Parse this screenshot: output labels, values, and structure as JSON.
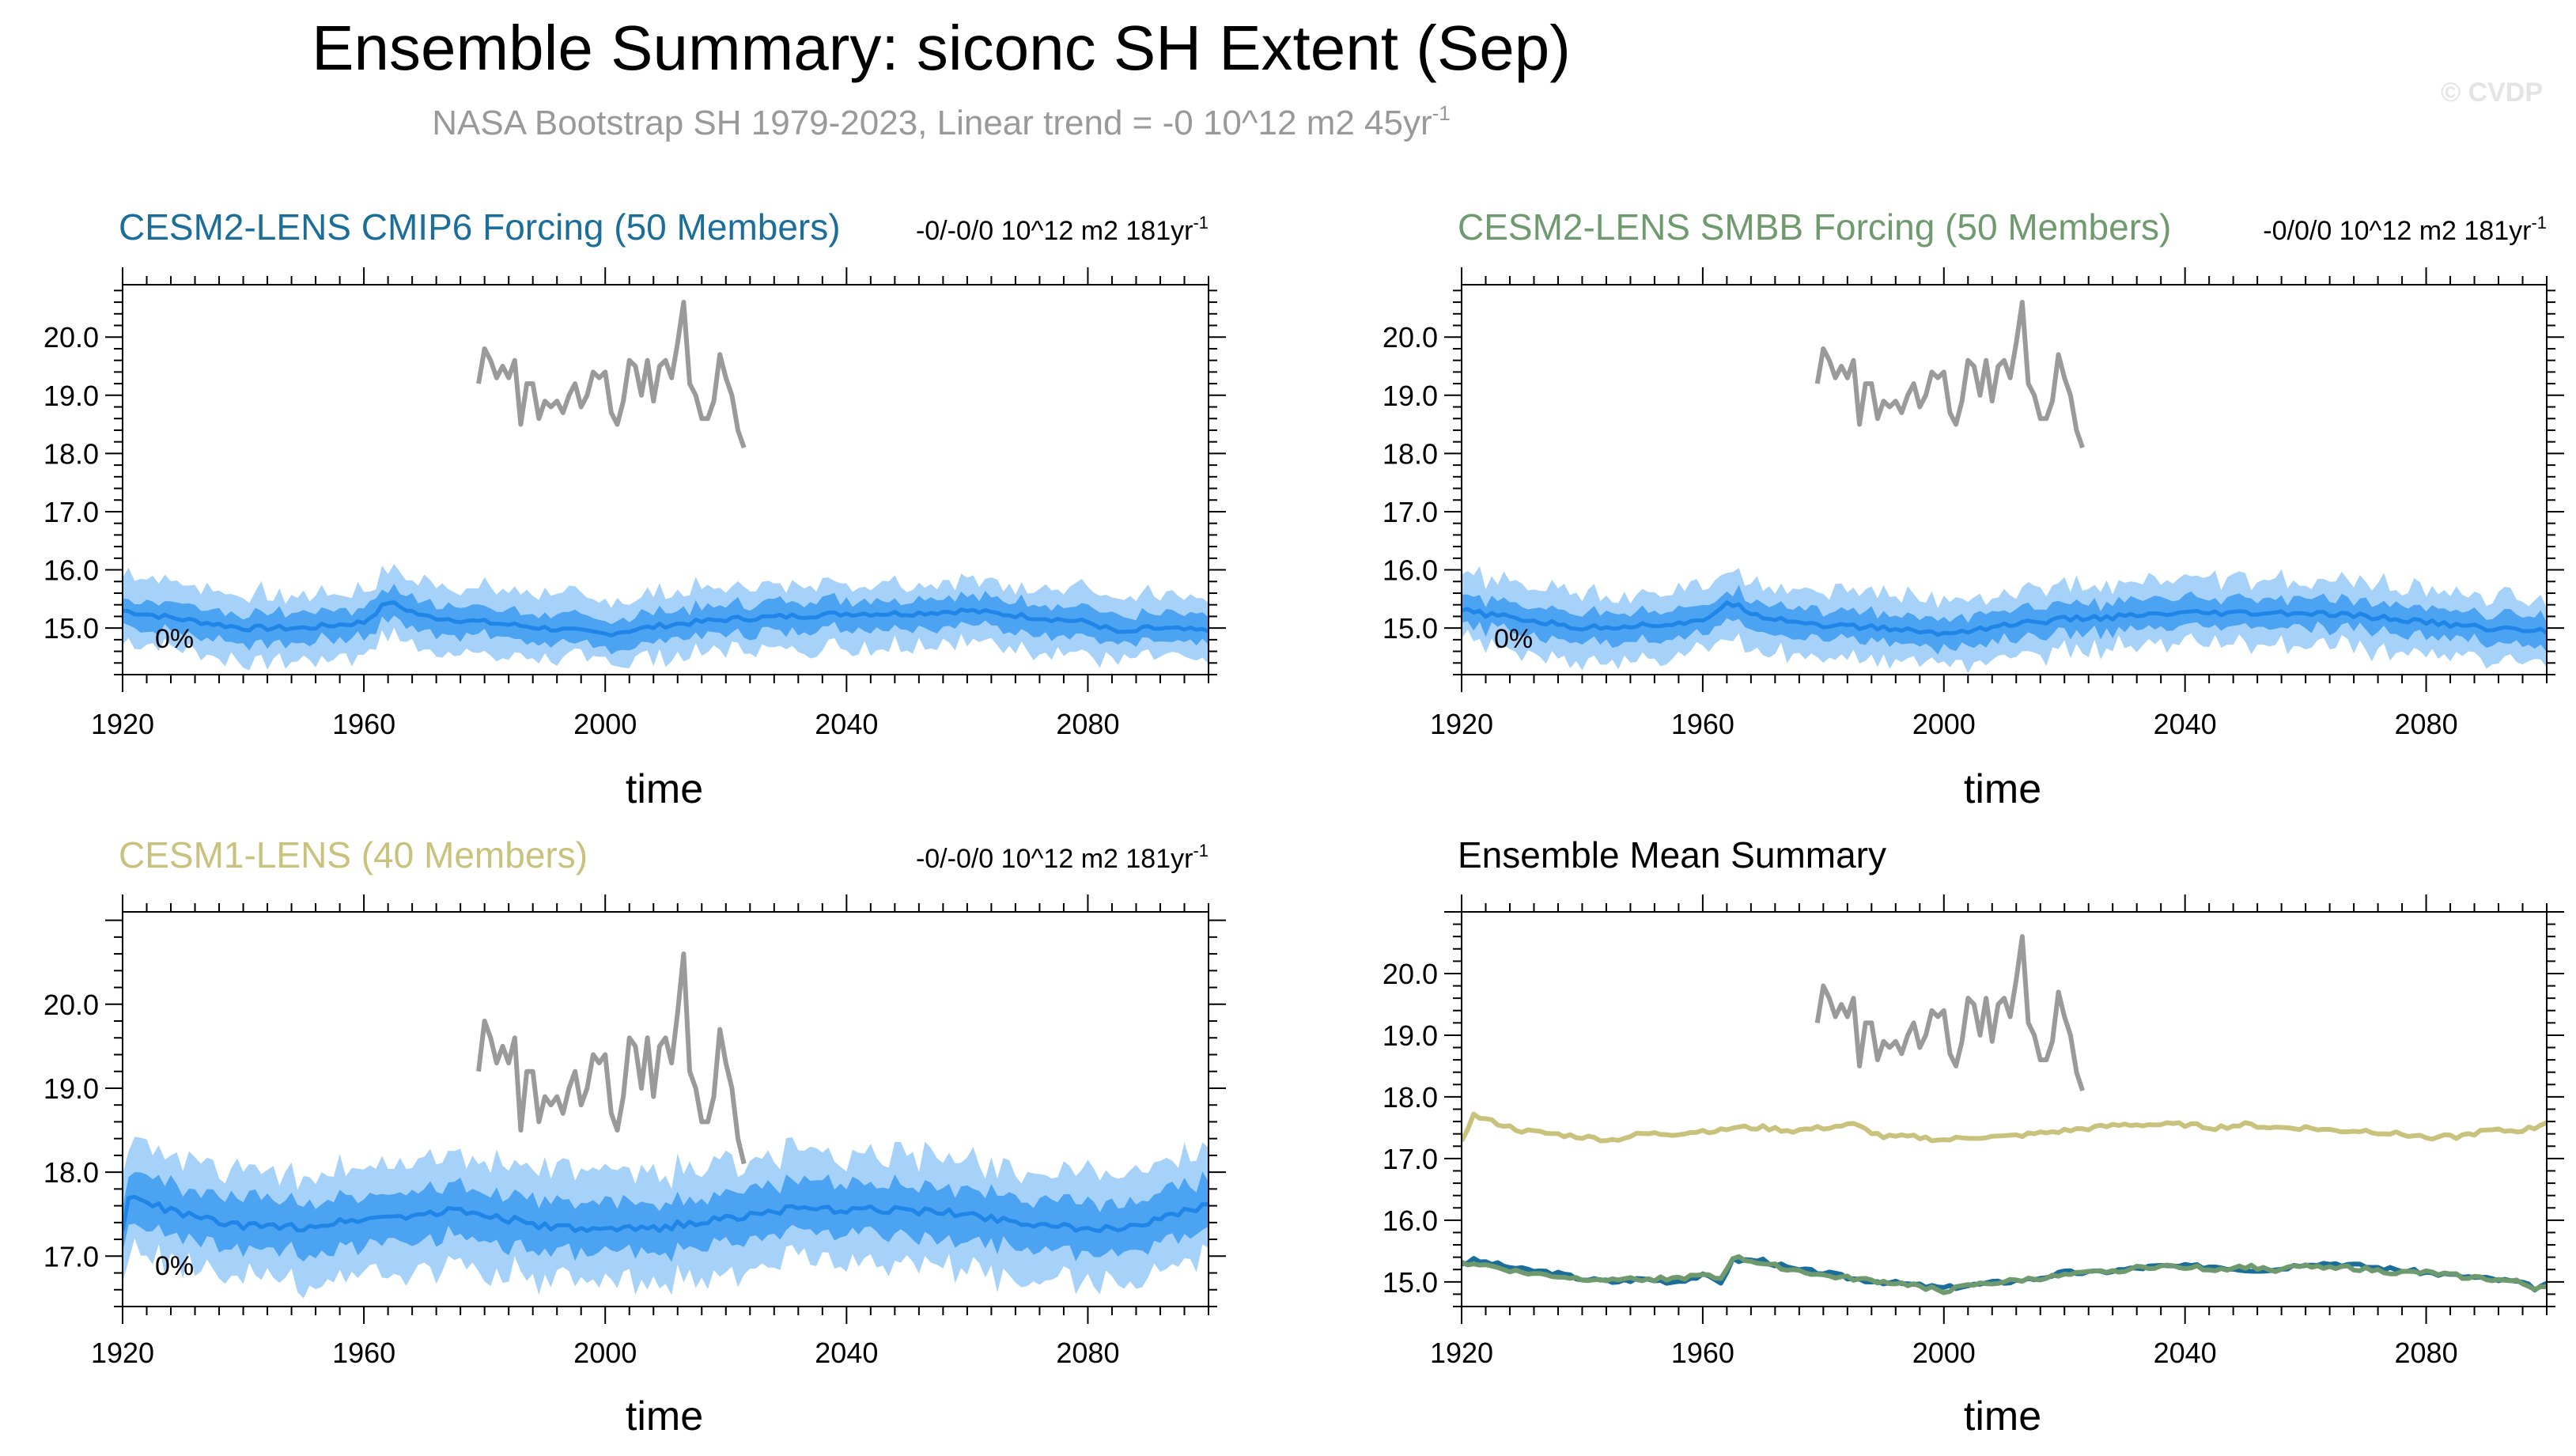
{
  "title": "Ensemble Summary: siconc SH Extent (Sep)",
  "subtitle_main": "NASA Bootstrap SH 1979-2023, Linear trend = -0 10^12 m2 45yr",
  "subtitle_sup": "-1",
  "watermark": "© CVDP",
  "colors": {
    "cmip6": "#1a6e99",
    "smbb": "#6e9a6e",
    "cesm1": "#c8c27c",
    "obs": "#9a9a9a",
    "band_outer": "#a6d2fa",
    "band_inner": "#4ba3f2",
    "mean_line": "#1f86e8"
  },
  "obs": {
    "years": [
      1979,
      1980,
      1981,
      1982,
      1983,
      1984,
      1985,
      1986,
      1987,
      1988,
      1989,
      1990,
      1991,
      1992,
      1993,
      1994,
      1995,
      1996,
      1997,
      1998,
      1999,
      2000,
      2001,
      2002,
      2003,
      2004,
      2005,
      2006,
      2007,
      2008,
      2009,
      2010,
      2011,
      2012,
      2013,
      2014,
      2015,
      2016,
      2017,
      2018,
      2019,
      2020,
      2021,
      2022,
      2023
    ],
    "values": [
      19.2,
      19.8,
      19.6,
      19.3,
      19.5,
      19.3,
      19.6,
      18.5,
      19.2,
      19.2,
      18.6,
      18.9,
      18.8,
      18.9,
      18.7,
      19.0,
      19.2,
      18.8,
      19.0,
      19.4,
      19.3,
      19.4,
      18.7,
      18.5,
      18.9,
      19.6,
      19.5,
      19.0,
      19.6,
      18.9,
      19.5,
      19.6,
      19.3,
      19.9,
      20.6,
      19.2,
      19.0,
      18.6,
      18.6,
      18.9,
      19.7,
      19.3,
      19.0,
      18.4,
      18.1
    ]
  },
  "panels": [
    {
      "id": "cmip6",
      "title": "CESM2-LENS CMIP6 Forcing (50 Members)",
      "trend_main": "-0/-0/0 10^12 m2 181yr",
      "trend_sup": "-1",
      "xlabel": "time",
      "pct_label": "0%",
      "ylim": [
        14.2,
        20.9
      ],
      "yticks": [
        "15.0",
        "16.0",
        "17.0",
        "18.0",
        "19.0",
        "20.0"
      ],
      "xticks": [
        "1920",
        "1960",
        "2000",
        "2040",
        "2080"
      ]
    },
    {
      "id": "smbb",
      "title": "CESM2-LENS SMBB Forcing (50 Members)",
      "trend_main": "-0/0/0 10^12 m2 181yr",
      "trend_sup": "-1",
      "xlabel": "time",
      "pct_label": "0%",
      "ylim": [
        14.2,
        20.9
      ],
      "yticks": [
        "15.0",
        "16.0",
        "17.0",
        "18.0",
        "19.0",
        "20.0"
      ],
      "xticks": [
        "1920",
        "1960",
        "2000",
        "2040",
        "2080"
      ]
    },
    {
      "id": "cesm1",
      "title": "CESM1-LENS (40 Members)",
      "trend_main": "-0/-0/0 10^12 m2 181yr",
      "trend_sup": "-1",
      "xlabel": "time",
      "pct_label": "0%",
      "ylim": [
        16.4,
        21.1
      ],
      "yticks": [
        "17.0",
        "18.0",
        "19.0",
        "20.0"
      ],
      "xticks": [
        "1920",
        "1960",
        "2000",
        "2040",
        "2080"
      ]
    },
    {
      "id": "summary",
      "title": "Ensemble Mean Summary",
      "trend_main": "",
      "trend_sup": "",
      "xlabel": "time",
      "pct_label": "",
      "ylim": [
        14.6,
        21.0
      ],
      "yticks": [
        "15.0",
        "16.0",
        "17.0",
        "18.0",
        "19.0",
        "20.0"
      ],
      "xticks": [
        "1920",
        "1960",
        "2000",
        "2040",
        "2080"
      ]
    }
  ],
  "chart_data": [
    {
      "type": "area",
      "title": "CESM2-LENS CMIP6 Forcing (50 Members)",
      "xlabel": "time",
      "ylabel": "",
      "xlim": [
        1920,
        2100
      ],
      "ylim": [
        14.2,
        20.9
      ],
      "series_description": "ensemble mean with 10-90% (dark) and min-max (light) spread",
      "x": [
        1920,
        1930,
        1940,
        1950,
        1960,
        1964,
        1970,
        1980,
        1990,
        2000,
        2010,
        2020,
        2030,
        2040,
        2050,
        2060,
        2070,
        2080,
        2086,
        2090,
        2100
      ],
      "mean": [
        15.3,
        15.15,
        15.0,
        15.0,
        15.1,
        15.45,
        15.2,
        15.1,
        15.0,
        14.9,
        15.05,
        15.15,
        15.2,
        15.25,
        15.25,
        15.3,
        15.2,
        15.1,
        14.9,
        15.0,
        14.95
      ],
      "p10": [
        15.05,
        14.9,
        14.75,
        14.75,
        14.85,
        15.2,
        14.95,
        14.85,
        14.75,
        14.65,
        14.8,
        14.9,
        14.95,
        15.0,
        15.0,
        15.05,
        14.95,
        14.85,
        14.65,
        14.75,
        14.7
      ],
      "p90": [
        15.55,
        15.4,
        15.25,
        15.25,
        15.35,
        15.7,
        15.45,
        15.35,
        15.25,
        15.15,
        15.3,
        15.4,
        15.45,
        15.5,
        15.5,
        15.55,
        15.45,
        15.35,
        15.15,
        15.25,
        15.2
      ],
      "min": [
        14.75,
        14.6,
        14.45,
        14.45,
        14.55,
        14.9,
        14.65,
        14.55,
        14.45,
        14.4,
        14.5,
        14.6,
        14.65,
        14.7,
        14.7,
        14.75,
        14.65,
        14.55,
        14.4,
        14.45,
        14.4
      ],
      "max": [
        15.95,
        15.75,
        15.6,
        15.55,
        15.65,
        16.05,
        15.8,
        15.7,
        15.6,
        15.45,
        15.6,
        15.7,
        15.75,
        15.8,
        15.8,
        15.85,
        15.75,
        15.65,
        15.45,
        15.55,
        15.5
      ]
    },
    {
      "type": "area",
      "title": "CESM2-LENS SMBB Forcing (50 Members)",
      "xlabel": "time",
      "ylabel": "",
      "xlim": [
        1920,
        2100
      ],
      "ylim": [
        14.2,
        20.9
      ],
      "series_description": "ensemble mean with 10-90% (dark) and min-max (light) spread",
      "x": [
        1920,
        1930,
        1940,
        1950,
        1960,
        1964,
        1970,
        1980,
        1990,
        2000,
        2010,
        2020,
        2030,
        2040,
        2050,
        2060,
        2070,
        2080,
        2090,
        2100
      ],
      "mean": [
        15.3,
        15.15,
        15.0,
        15.05,
        15.1,
        15.45,
        15.2,
        15.05,
        15.0,
        14.9,
        15.05,
        15.15,
        15.2,
        15.25,
        15.25,
        15.25,
        15.2,
        15.1,
        15.0,
        14.95
      ],
      "p10": [
        15.05,
        14.9,
        14.75,
        14.8,
        14.85,
        15.2,
        14.95,
        14.8,
        14.75,
        14.65,
        14.8,
        14.9,
        14.95,
        15.0,
        15.0,
        15.0,
        14.95,
        14.85,
        14.75,
        14.7
      ],
      "p90": [
        15.55,
        15.4,
        15.25,
        15.3,
        15.35,
        15.7,
        15.45,
        15.3,
        15.25,
        15.15,
        15.3,
        15.4,
        15.45,
        15.5,
        15.5,
        15.5,
        15.45,
        15.35,
        15.25,
        15.2
      ],
      "min": [
        14.75,
        14.6,
        14.45,
        14.5,
        14.55,
        14.9,
        14.65,
        14.5,
        14.45,
        14.4,
        14.5,
        14.6,
        14.65,
        14.7,
        14.7,
        14.7,
        14.65,
        14.55,
        14.45,
        14.4
      ],
      "max": [
        15.95,
        15.75,
        15.6,
        15.6,
        15.65,
        16.05,
        15.8,
        15.65,
        15.6,
        15.45,
        15.6,
        15.7,
        15.75,
        15.8,
        15.8,
        15.8,
        15.75,
        15.65,
        15.55,
        15.5
      ]
    },
    {
      "type": "area",
      "title": "CESM1-LENS (40 Members)",
      "xlabel": "time",
      "ylabel": "",
      "xlim": [
        1920,
        2100
      ],
      "ylim": [
        16.4,
        21.1
      ],
      "series_description": "ensemble mean with 10-90% (dark) and min-max (light) spread",
      "x": [
        1920,
        1921,
        1930,
        1940,
        1950,
        1960,
        1970,
        1975,
        1980,
        1990,
        2000,
        2010,
        2020,
        2030,
        2040,
        2050,
        2060,
        2070,
        2080,
        2090,
        2100
      ],
      "mean": [
        17.3,
        17.7,
        17.5,
        17.35,
        17.35,
        17.45,
        17.5,
        17.55,
        17.5,
        17.35,
        17.3,
        17.35,
        17.45,
        17.55,
        17.55,
        17.55,
        17.5,
        17.4,
        17.3,
        17.4,
        17.6
      ],
      "p10": [
        17.0,
        17.4,
        17.2,
        17.05,
        17.05,
        17.15,
        17.2,
        17.25,
        17.2,
        17.05,
        17.0,
        17.05,
        17.15,
        17.25,
        17.25,
        17.25,
        17.2,
        17.1,
        17.0,
        17.1,
        17.3
      ],
      "p90": [
        17.6,
        18.0,
        17.8,
        17.65,
        17.65,
        17.75,
        17.8,
        17.85,
        17.8,
        17.65,
        17.6,
        17.65,
        17.75,
        17.85,
        17.85,
        17.85,
        17.8,
        17.7,
        17.6,
        17.7,
        17.9
      ],
      "min": [
        16.7,
        17.05,
        16.85,
        16.7,
        16.7,
        16.8,
        16.85,
        16.9,
        16.85,
        16.7,
        16.65,
        16.7,
        16.8,
        16.9,
        16.9,
        16.9,
        16.85,
        16.75,
        16.65,
        16.75,
        16.95
      ],
      "max": [
        17.95,
        18.35,
        18.15,
        18.0,
        18.0,
        18.1,
        18.15,
        18.2,
        18.15,
        18.0,
        17.95,
        18.0,
        18.1,
        18.2,
        18.2,
        18.2,
        18.15,
        18.05,
        17.95,
        18.05,
        18.25
      ]
    },
    {
      "type": "line",
      "title": "Ensemble Mean Summary",
      "xlabel": "time",
      "ylabel": "",
      "xlim": [
        1920,
        2100
      ],
      "ylim": [
        14.6,
        21.0
      ],
      "x": [
        1920,
        1922,
        1925,
        1930,
        1935,
        1940,
        1945,
        1950,
        1955,
        1960,
        1963,
        1965,
        1970,
        1975,
        1980,
        1985,
        1990,
        1995,
        2000,
        2005,
        2010,
        2015,
        2020,
        2025,
        2030,
        2035,
        2040,
        2045,
        2050,
        2055,
        2060,
        2065,
        2070,
        2075,
        2080,
        2085,
        2090,
        2095,
        2098,
        2100
      ],
      "series": [
        {
          "name": "CESM2-LENS CMIP6 Forcing",
          "color_key": "cmip6",
          "values": [
            15.3,
            15.35,
            15.3,
            15.2,
            15.15,
            15.05,
            15.0,
            15.05,
            15.0,
            15.1,
            15.0,
            15.35,
            15.35,
            15.2,
            15.15,
            15.05,
            15.0,
            14.95,
            14.9,
            14.95,
            15.0,
            15.05,
            15.15,
            15.15,
            15.2,
            15.25,
            15.25,
            15.25,
            15.2,
            15.2,
            15.3,
            15.3,
            15.25,
            15.2,
            15.15,
            15.1,
            15.05,
            15.0,
            14.9,
            14.95
          ]
        },
        {
          "name": "CESM2-LENS SMBB Forcing",
          "color_key": "smbb",
          "values": [
            15.3,
            15.3,
            15.25,
            15.15,
            15.1,
            15.05,
            15.05,
            15.05,
            15.05,
            15.1,
            15.05,
            15.4,
            15.3,
            15.2,
            15.1,
            15.05,
            15.0,
            14.95,
            14.85,
            14.95,
            15.0,
            15.05,
            15.1,
            15.15,
            15.2,
            15.25,
            15.25,
            15.2,
            15.25,
            15.2,
            15.25,
            15.25,
            15.2,
            15.15,
            15.15,
            15.1,
            15.05,
            15.0,
            14.9,
            14.95
          ]
        },
        {
          "name": "CESM1-LENS",
          "color_key": "cesm1",
          "values": [
            17.3,
            17.7,
            17.6,
            17.45,
            17.4,
            17.35,
            17.3,
            17.4,
            17.4,
            17.45,
            17.45,
            17.5,
            17.5,
            17.45,
            17.5,
            17.55,
            17.35,
            17.35,
            17.3,
            17.35,
            17.35,
            17.4,
            17.45,
            17.5,
            17.55,
            17.55,
            17.55,
            17.5,
            17.55,
            17.5,
            17.5,
            17.45,
            17.45,
            17.4,
            17.35,
            17.35,
            17.45,
            17.45,
            17.5,
            17.6
          ]
        },
        {
          "name": "NASA Bootstrap SH (obs)",
          "color_key": "obs",
          "values_ref": "obs"
        }
      ]
    }
  ]
}
